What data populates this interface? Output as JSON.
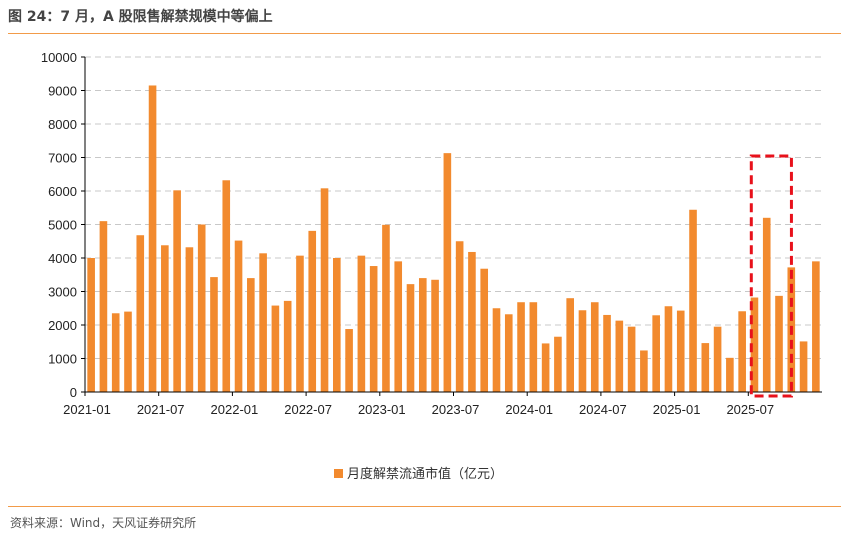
{
  "title": "图 24：7 月，A 股限售解禁规模中等偏上",
  "source": "资料来源：Wind，天风证券研究所",
  "colors": {
    "bar": "#f28a2e",
    "highlight_box": "#e8111b",
    "rule": "#f29b49",
    "grid": "#c8c8c8"
  },
  "chart_data": {
    "type": "bar",
    "title": "",
    "xlabel": "",
    "ylabel": "",
    "ylim": [
      0,
      10000
    ],
    "yticks": [
      0,
      1000,
      2000,
      3000,
      4000,
      5000,
      6000,
      7000,
      8000,
      9000,
      10000
    ],
    "grid": true,
    "legend_position": "bottom",
    "x_tick_labels": [
      "2021-01",
      "2021-07",
      "2022-01",
      "2022-07",
      "2023-01",
      "2023-07",
      "2024-01",
      "2024-07",
      "2025-01",
      "2025-07"
    ],
    "categories": [
      "2021-01",
      "2021-02",
      "2021-03",
      "2021-04",
      "2021-05",
      "2021-06",
      "2021-07",
      "2021-08",
      "2021-09",
      "2021-10",
      "2021-11",
      "2021-12",
      "2022-01",
      "2022-02",
      "2022-03",
      "2022-04",
      "2022-05",
      "2022-06",
      "2022-07",
      "2022-08",
      "2022-09",
      "2022-10",
      "2022-11",
      "2022-12",
      "2023-01",
      "2023-02",
      "2023-03",
      "2023-04",
      "2023-05",
      "2023-06",
      "2023-07",
      "2023-08",
      "2023-09",
      "2023-10",
      "2023-11",
      "2023-12",
      "2024-01",
      "2024-02",
      "2024-03",
      "2024-04",
      "2024-05",
      "2024-06",
      "2024-07",
      "2024-08",
      "2024-09",
      "2024-10",
      "2024-11",
      "2024-12",
      "2025-01",
      "2025-02",
      "2025-03",
      "2025-04",
      "2025-05",
      "2025-06",
      "2025-07",
      "2025-08",
      "2025-09",
      "2025-10",
      "2025-11",
      "2025-12"
    ],
    "series": [
      {
        "name": "月度解禁流通市值（亿元）",
        "values": [
          4000,
          5100,
          2350,
          2400,
          4680,
          9150,
          4380,
          6020,
          4320,
          5000,
          3430,
          6320,
          4520,
          3400,
          4140,
          2580,
          2720,
          4070,
          4810,
          6080,
          4000,
          1880,
          4070,
          3760,
          4990,
          3900,
          3220,
          3400,
          3350,
          7130,
          4500,
          4180,
          3680,
          2500,
          2320,
          2680,
          2680,
          1450,
          1650,
          2800,
          2440,
          2680,
          2300,
          2130,
          1950,
          1240,
          2290,
          2560,
          2430,
          5440,
          1460,
          1950,
          1020,
          2410,
          2820,
          5200,
          2870,
          3720,
          1510,
          3900
        ]
      }
    ],
    "highlight": {
      "from": "2025-07",
      "to": "2025-10"
    }
  }
}
